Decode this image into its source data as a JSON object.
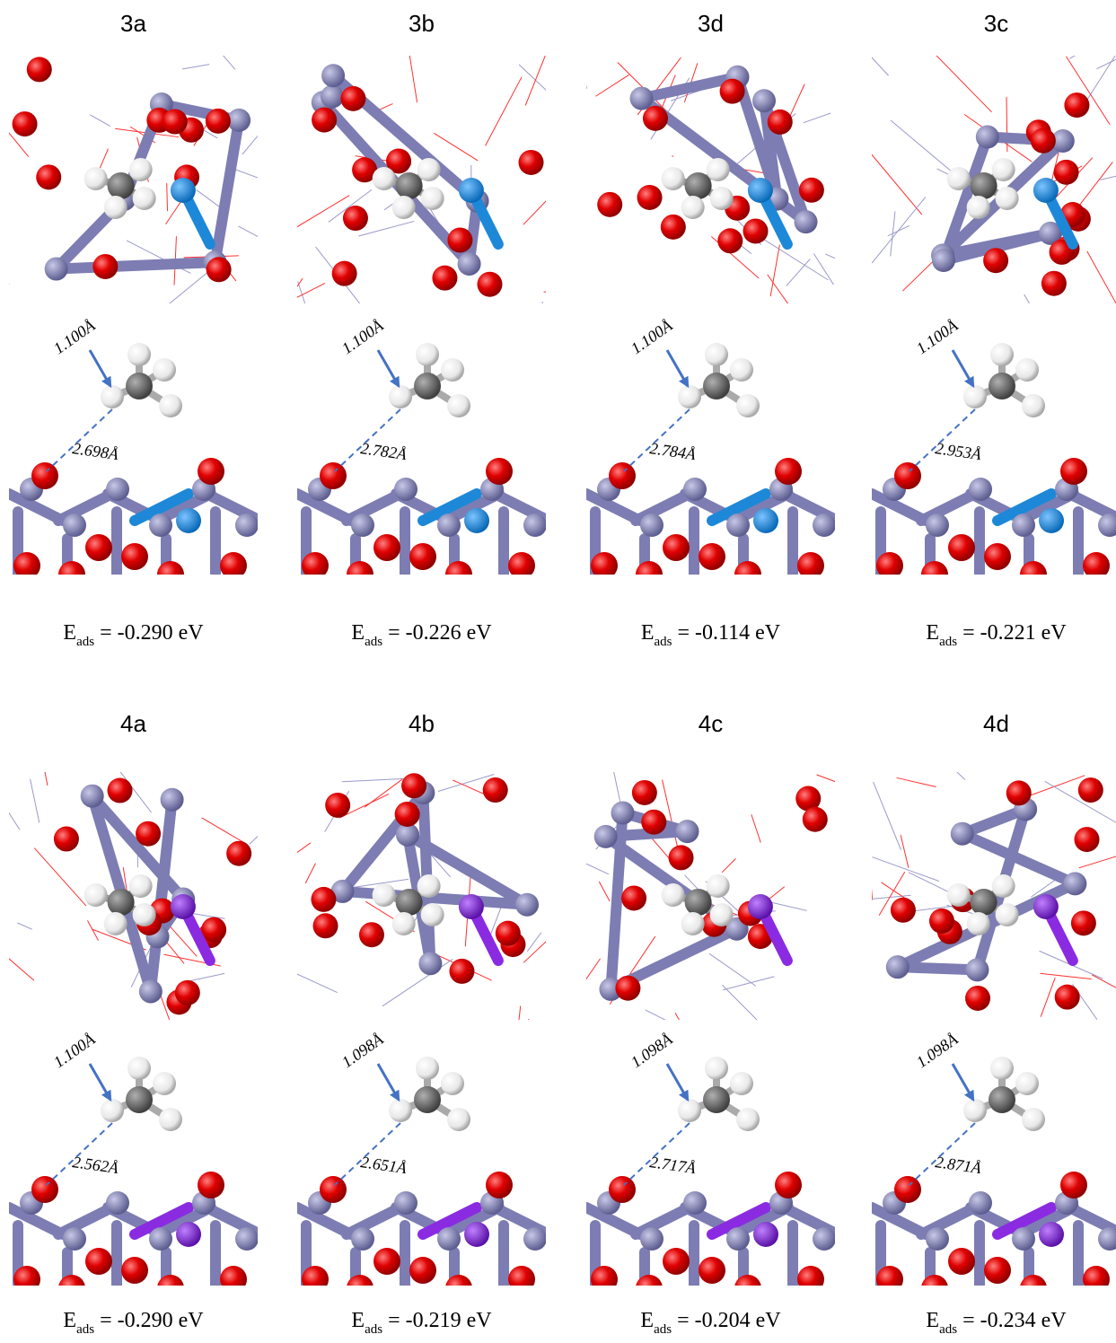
{
  "panels": [
    {
      "label": "3a",
      "bond": "1.100Å",
      "distance": "2.698Å",
      "energy": {
        "symbol": "E",
        "subscript": "ads",
        "text": " = -0.290 eV"
      }
    },
    {
      "label": "3b",
      "bond": "1.100Å",
      "distance": "2.782Å",
      "energy": {
        "symbol": "E",
        "subscript": "ads",
        "text": " = -0.226 eV"
      }
    },
    {
      "label": "3d",
      "bond": "1.100Å",
      "distance": "2.784Å",
      "energy": {
        "symbol": "E",
        "subscript": "ads",
        "text": " = -0.114 eV"
      }
    },
    {
      "label": "3c",
      "bond": "1.100Å",
      "distance": "2.953Å",
      "energy": {
        "symbol": "E",
        "subscript": "ads",
        "text": " = -0.221 eV"
      }
    },
    {
      "label": "4a",
      "bond": "1.100Å",
      "distance": "2.562Å",
      "energy": {
        "symbol": "E",
        "subscript": "ads",
        "text": " = -0.290 eV"
      }
    },
    {
      "label": "4b",
      "bond": "1.098Å",
      "distance": "2.651Å",
      "energy": {
        "symbol": "E",
        "subscript": "ads",
        "text": " = -0.219 eV"
      }
    },
    {
      "label": "4c",
      "bond": "1.098Å",
      "distance": "2.717Å",
      "energy": {
        "symbol": "E",
        "subscript": "ads",
        "text": " = -0.204 eV"
      }
    },
    {
      "label": "4d",
      "bond": "1.098Å",
      "distance": "2.871Å",
      "energy": {
        "symbol": "E",
        "subscript": "ads",
        "text": " = -0.234 eV"
      }
    }
  ]
}
